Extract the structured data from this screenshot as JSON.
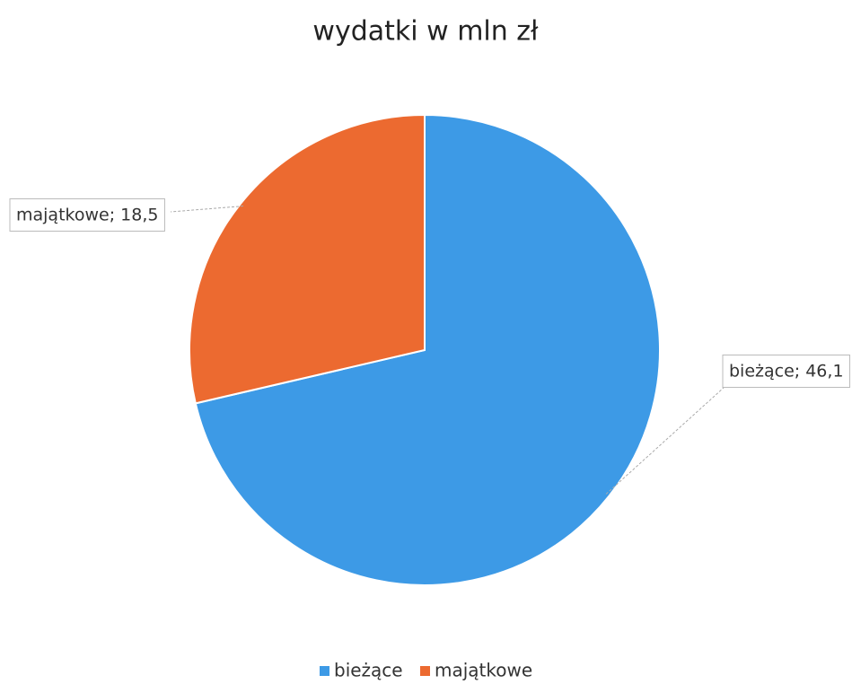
{
  "chart_data": {
    "type": "pie",
    "title": "wydatki w mln zł",
    "categories": [
      "bieżące",
      "majątkowe"
    ],
    "values": [
      46.1,
      18.5
    ],
    "value_labels": [
      "bieżące; 46,1",
      "majątkowe; 18,5"
    ],
    "colors": [
      "#3d9ae6",
      "#ec6a30"
    ],
    "legend": "bottom"
  }
}
